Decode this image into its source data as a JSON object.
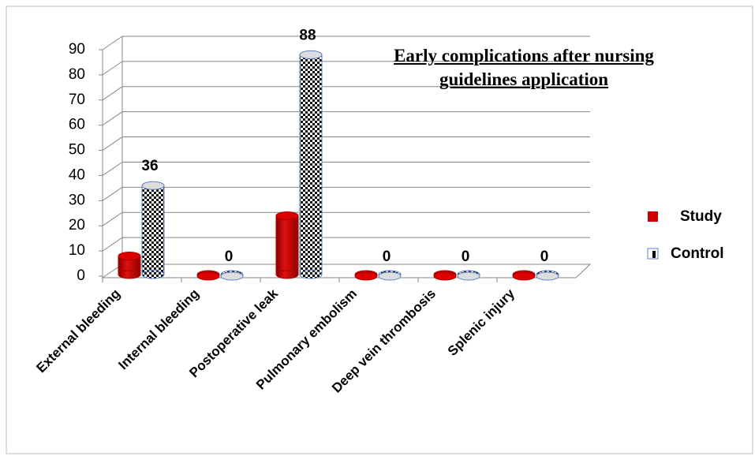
{
  "chart_data": {
    "type": "bar3d",
    "title": "Early complications after nursing guidelines application",
    "categories": [
      "External bleeding",
      "Internal bleeding",
      "Postoperative leak",
      "Pulmonary embolism",
      "Deep vein thrombosis",
      "Splenic injury"
    ],
    "series": [
      {
        "name": "Study",
        "color": "#cc0000",
        "values": [
          8,
          0,
          24,
          0,
          0,
          0
        ]
      },
      {
        "name": "Control",
        "color": "#000000",
        "values": [
          36,
          0,
          88,
          0,
          0,
          0
        ]
      }
    ],
    "data_labels_series": 1,
    "ylim": [
      0,
      90
    ],
    "yticks": [
      0,
      10,
      20,
      30,
      40,
      50,
      60,
      70,
      80,
      90
    ],
    "grid": true,
    "legend": "right"
  }
}
